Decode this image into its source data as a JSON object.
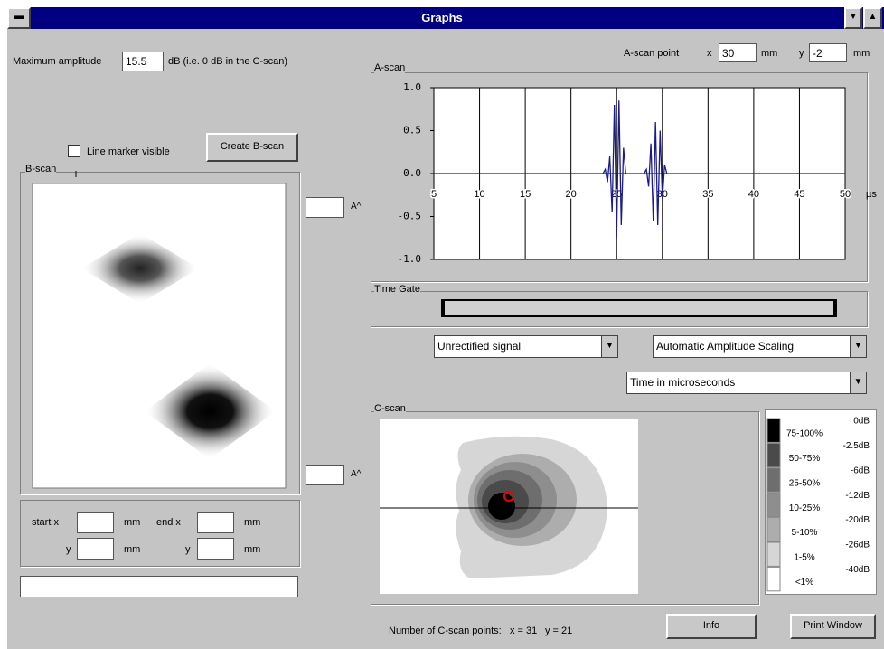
{
  "window": {
    "title": "Graphs"
  },
  "amplitude": {
    "label": "Maximum amplitude",
    "value": "15.5",
    "unit": "dB (i.e. 0 dB in the C-scan)"
  },
  "ascan_point": {
    "label": "A-scan point",
    "x_label": "x",
    "x_value": "30",
    "x_unit": "mm",
    "y_label": "y",
    "y_value": "-2",
    "y_unit": "mm"
  },
  "a_scan": {
    "type": "line",
    "title": "A-scan",
    "x_label": "µs",
    "color": "#1a1a8c",
    "grid": true,
    "x": [
      5,
      23.5,
      23.75,
      24,
      24.25,
      24.5,
      24.75,
      25,
      25.25,
      25.5,
      25.75,
      26,
      28,
      28.25,
      28.5,
      28.75,
      29,
      29.25,
      29.5,
      29.75,
      30,
      30.25,
      30.5,
      50
    ],
    "values": [
      0,
      0,
      0.05,
      -0.1,
      0.2,
      -0.45,
      0.8,
      -0.75,
      0.85,
      -0.6,
      0.3,
      0,
      0,
      0.05,
      -0.15,
      0.35,
      -0.55,
      0.6,
      -0.6,
      0.5,
      -0.3,
      0.1,
      0,
      0
    ],
    "xlim": [
      5,
      50
    ],
    "xticks": [
      5,
      10,
      15,
      20,
      25,
      30,
      35,
      40,
      45,
      50
    ],
    "ylim": [
      -1,
      1
    ],
    "yticks": [
      {
        "value": 1,
        "label": "1.0"
      },
      {
        "value": 0.5,
        "label": "0.5"
      },
      {
        "value": 0,
        "label": "0.0"
      },
      {
        "value": -0.5,
        "label": "-0.5"
      },
      {
        "value": -1,
        "label": "-1.0"
      }
    ]
  },
  "time_gate": {
    "label": "Time Gate"
  },
  "dropdowns": [
    "Unrectified signal",
    "Automatic Amplitude Scaling",
    "Time in microseconds"
  ],
  "line_marker": {
    "label": "Line marker visible"
  },
  "buttons": {
    "create_bscan": "Create B-scan",
    "info": "Info",
    "print": "Print Window"
  },
  "b_scan": {
    "title": "B-scan"
  },
  "amp_labels": [
    "A^",
    "A^"
  ],
  "line_rows": [
    [
      "start x",
      "mm",
      "end x",
      "mm"
    ],
    [
      "y",
      "mm",
      "y",
      "mm"
    ]
  ],
  "c_scan": {
    "title": "C-scan",
    "legend": [
      {
        "range": "75-100%",
        "db": "0dB",
        "color": "#000000"
      },
      {
        "range": "50-75%",
        "db": "-2.5dB",
        "color": "#4a4a4a"
      },
      {
        "range": "25-50%",
        "db": "-6dB",
        "color": "#6e6e6e"
      },
      {
        "range": "10-25%",
        "db": "-12dB",
        "color": "#8e8e8e"
      },
      {
        "range": "5-10%",
        "db": "-20dB",
        "color": "#adadad"
      },
      {
        "range": "1-5%",
        "db": "-26dB",
        "color": "#d6d6d6"
      },
      {
        "range": "<1%",
        "db": "-40dB",
        "color": "#ffffff"
      }
    ]
  },
  "points": {
    "label": "Number of C-scan points:",
    "x": "x = 31",
    "y": "y = 21"
  }
}
